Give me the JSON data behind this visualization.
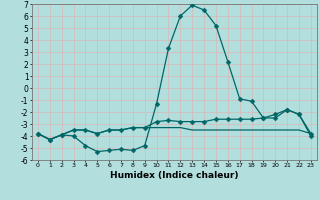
{
  "xlabel": "Humidex (Indice chaleur)",
  "ylabel": "",
  "xlim": [
    -0.5,
    23.5
  ],
  "ylim": [
    -6,
    7
  ],
  "bg_color": "#b2dede",
  "grid_color": "#d8b8b8",
  "line_color": "#006666",
  "x": [
    0,
    1,
    2,
    3,
    4,
    5,
    6,
    7,
    8,
    9,
    10,
    11,
    12,
    13,
    14,
    15,
    16,
    17,
    18,
    19,
    20,
    21,
    22,
    23
  ],
  "y_top": [
    -3.8,
    -4.3,
    -3.9,
    -4.0,
    -4.8,
    -5.3,
    -5.2,
    -5.1,
    -5.2,
    -4.8,
    -1.3,
    3.3,
    6.0,
    6.9,
    6.5,
    5.2,
    2.2,
    -0.9,
    -1.1,
    -2.5,
    -2.2,
    -1.8,
    -2.2,
    -4.0
  ],
  "y_mid": [
    -3.8,
    -4.3,
    -3.9,
    -3.5,
    -3.5,
    -3.8,
    -3.5,
    -3.5,
    -3.3,
    -3.3,
    -2.8,
    -2.7,
    -2.8,
    -2.8,
    -2.8,
    -2.6,
    -2.6,
    -2.6,
    -2.6,
    -2.5,
    -2.5,
    -1.8,
    -2.2,
    -3.8
  ],
  "y_bot": [
    -3.8,
    -4.3,
    -3.9,
    -3.5,
    -3.5,
    -3.8,
    -3.5,
    -3.5,
    -3.3,
    -3.3,
    -3.3,
    -3.3,
    -3.3,
    -3.5,
    -3.5,
    -3.5,
    -3.5,
    -3.5,
    -3.5,
    -3.5,
    -3.5,
    -3.5,
    -3.5,
    -3.8
  ],
  "yticks": [
    -6,
    -5,
    -4,
    -3,
    -2,
    -1,
    0,
    1,
    2,
    3,
    4,
    5,
    6,
    7
  ],
  "xticks": [
    0,
    1,
    2,
    3,
    4,
    5,
    6,
    7,
    8,
    9,
    10,
    11,
    12,
    13,
    14,
    15,
    16,
    17,
    18,
    19,
    20,
    21,
    22,
    23
  ]
}
